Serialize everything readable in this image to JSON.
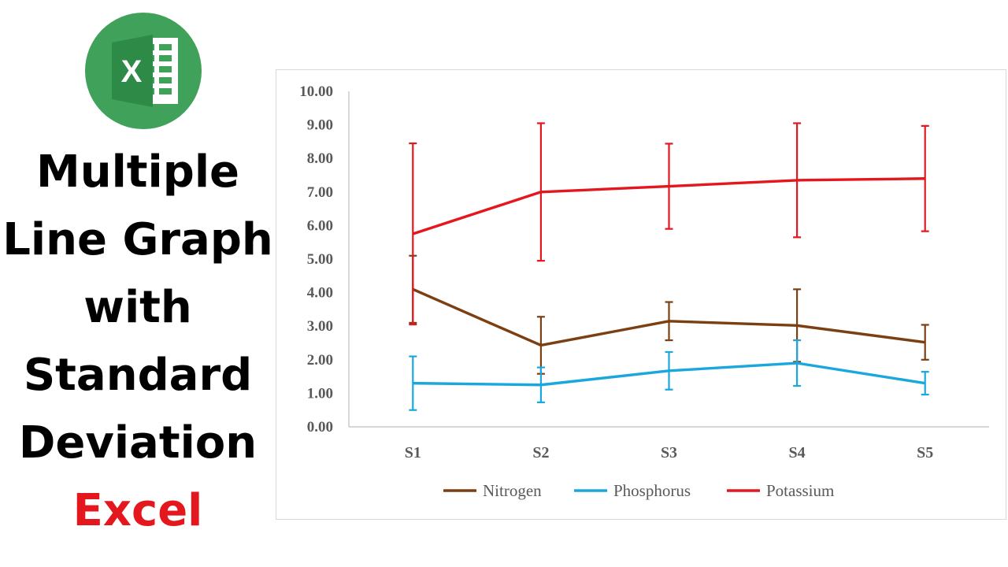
{
  "title": {
    "lines": [
      "Multiple",
      "Line Graph",
      "with",
      "Standard",
      "Deviation"
    ],
    "accent": "Excel"
  },
  "logo": {
    "letter": "X",
    "icon": "excel-icon"
  },
  "colors": {
    "title_text": "#000000",
    "accent": "#e3171d",
    "axis_text": "#595959",
    "axis_line": "#bfbfbf",
    "logo_green": "#3fa15a"
  },
  "chart_data": {
    "type": "line",
    "categories": [
      "S1",
      "S2",
      "S3",
      "S4",
      "S5"
    ],
    "ylim": [
      0,
      10
    ],
    "ytick_step": 1,
    "ytick_labels": [
      "0.00",
      "1.00",
      "2.00",
      "3.00",
      "4.00",
      "5.00",
      "6.00",
      "7.00",
      "8.00",
      "9.00",
      "10.00"
    ],
    "grid": false,
    "legend": "bottom",
    "title": "",
    "xlabel": "",
    "ylabel": "",
    "series": [
      {
        "name": "Nitrogen",
        "color": "#7b3f12",
        "values": [
          4.1,
          2.43,
          3.15,
          3.02,
          2.52
        ],
        "sd": [
          1.0,
          0.85,
          0.57,
          1.08,
          0.52
        ]
      },
      {
        "name": "Phosphorus",
        "color": "#1aa7de",
        "values": [
          1.3,
          1.25,
          1.67,
          1.9,
          1.3
        ],
        "sd": [
          0.8,
          0.52,
          0.56,
          0.68,
          0.34
        ]
      },
      {
        "name": "Potassium",
        "color": "#e3171d",
        "values": [
          5.75,
          7.0,
          7.17,
          7.35,
          7.4
        ],
        "sd": [
          2.7,
          2.05,
          1.27,
          1.7,
          1.57
        ]
      }
    ]
  }
}
